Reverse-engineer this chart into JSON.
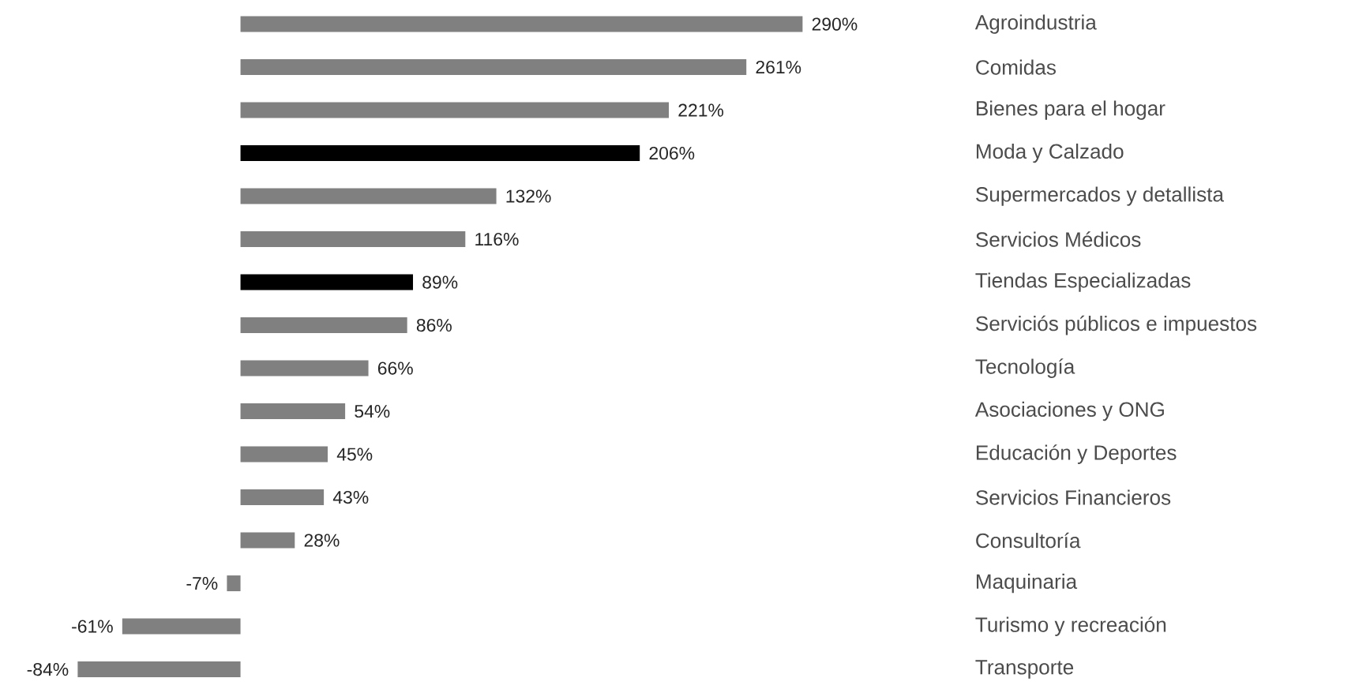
{
  "chart_data": {
    "type": "bar",
    "orientation": "horizontal",
    "categories": [
      "Agroindustria",
      "Comidas",
      "Bienes para el hogar",
      "Moda y Calzado",
      "Supermercados y detallista",
      "Servicios Médicos",
      "Tiendas Especializadas",
      "Serviciós públicos e impuestos",
      "Tecnología",
      "Asociaciones y ONG",
      "Educación y Deportes",
      "Servicios Financieros",
      "Consultoría",
      "Maquinaria",
      "Turismo y recreación",
      "Transporte"
    ],
    "values": [
      290,
      261,
      221,
      206,
      132,
      116,
      89,
      86,
      66,
      54,
      45,
      43,
      28,
      -7,
      -61,
      -84
    ],
    "value_labels": [
      "290%",
      "261%",
      "221%",
      "206%",
      "132%",
      "116%",
      "89%",
      "86%",
      "66%",
      "54%",
      "45%",
      "43%",
      "28%",
      "-7%",
      "-61%",
      "-84%"
    ],
    "colors": [
      "#808080",
      "#808080",
      "#808080",
      "#000000",
      "#808080",
      "#808080",
      "#000000",
      "#808080",
      "#808080",
      "#808080",
      "#808080",
      "#808080",
      "#808080",
      "#808080",
      "#808080",
      "#808080"
    ]
  }
}
